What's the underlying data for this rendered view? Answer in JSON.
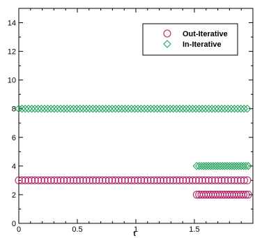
{
  "chart_data": {
    "type": "scatter",
    "title": "",
    "xlabel": "t",
    "ylabel": "",
    "xlim": [
      0,
      2.0
    ],
    "ylim": [
      0,
      15
    ],
    "x_ticks": [
      "0",
      "0.5",
      "1",
      "1.5"
    ],
    "x_tick_values": [
      0,
      0.5,
      1,
      1.5
    ],
    "y_ticks": [
      "0",
      "2",
      "4",
      "6",
      "8",
      "10",
      "12",
      "14"
    ],
    "y_tick_values": [
      0,
      2,
      4,
      6,
      8,
      10,
      12,
      14
    ],
    "grid": false,
    "legend_position": "top-right",
    "series": [
      {
        "name": "Out-Iterative",
        "marker": "circle",
        "color": "#b0175f",
        "points": [
          {
            "x_start": 0.0,
            "x_end": 1.96,
            "step": 0.0275,
            "y": 3
          },
          {
            "x_start": 1.52,
            "x_end": 1.96,
            "step": 0.02,
            "y": 2
          }
        ]
      },
      {
        "name": "In-Iterative",
        "marker": "diamond",
        "color": "#17a055",
        "points": [
          {
            "x_start": 0.0,
            "x_end": 1.96,
            "step": 0.0275,
            "y": 8
          },
          {
            "x_start": 1.52,
            "x_end": 1.96,
            "step": 0.02,
            "y": 4
          }
        ]
      }
    ]
  }
}
